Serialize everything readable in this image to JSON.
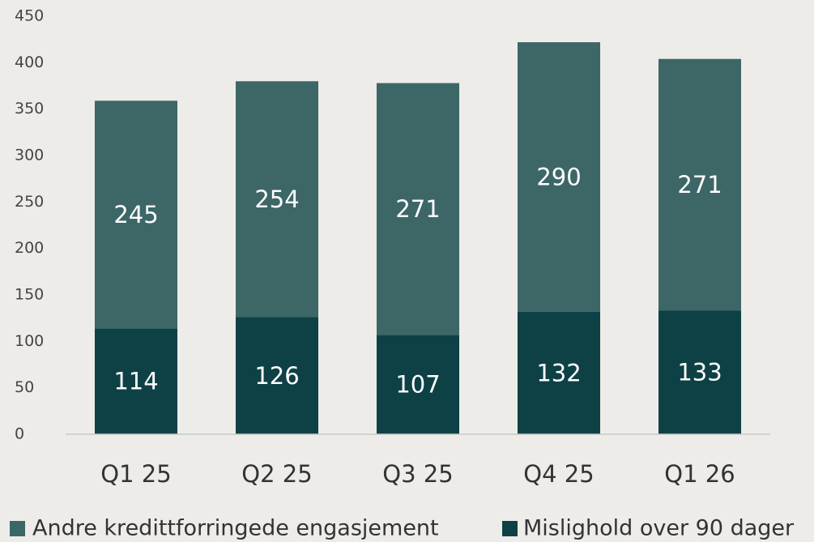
{
  "chart_data": {
    "type": "stacked_bar",
    "categories": [
      "Q1 25",
      "Q2 25",
      "Q3 25",
      "Q4 25",
      "Q1 26"
    ],
    "series": [
      {
        "name": "Mislighold over 90 dager",
        "color": "#0e4146",
        "values": [
          114,
          126,
          107,
          132,
          133
        ]
      },
      {
        "name": "Andre kredittforringede engasjement",
        "color": "#3d6667",
        "values": [
          245,
          254,
          271,
          290,
          271
        ]
      }
    ],
    "ylim": [
      0,
      450
    ],
    "yticks": [
      0,
      50,
      100,
      150,
      200,
      250,
      300,
      350,
      400,
      450
    ],
    "grid": false,
    "legend": "bottom"
  }
}
